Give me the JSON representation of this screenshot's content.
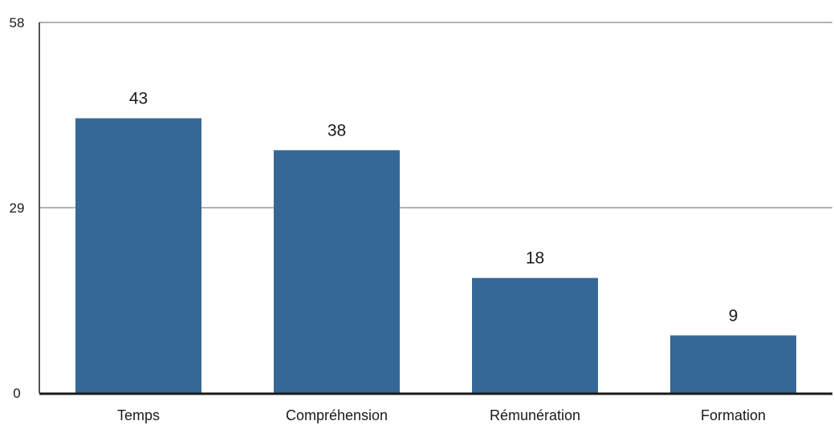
{
  "colors": {
    "bar": "#366897",
    "gridline": "#999999",
    "axis": "#1a1a1a"
  },
  "chart_data": {
    "type": "bar",
    "title": "",
    "xlabel": "",
    "ylabel": "",
    "categories": [
      "Temps",
      "Compréhension",
      "Rémunération",
      "Formation"
    ],
    "values": [
      43,
      38,
      18,
      9
    ],
    "data_labels": [
      "43",
      "38",
      "18",
      "9"
    ],
    "ylim": [
      0,
      58
    ],
    "yticks": [
      0,
      29,
      58
    ],
    "ytick_labels": [
      "0",
      "29",
      "58"
    ],
    "grid": true,
    "legend": "none"
  }
}
